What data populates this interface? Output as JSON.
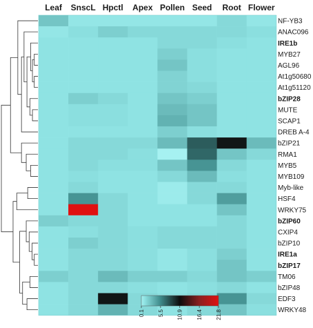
{
  "chart_data": {
    "type": "heatmap",
    "title": "",
    "columns": [
      "Leaf",
      "SnscL",
      "Hpctl",
      "Apex",
      "Pollen",
      "Seed",
      "Root",
      "Flower"
    ],
    "rows": [
      {
        "label": "NF-YB3",
        "highlight": false,
        "values": [
          2.5,
          0.8,
          0.8,
          0.8,
          0.8,
          0.8,
          1.5,
          0.8
        ]
      },
      {
        "label": "ANAC096",
        "highlight": false,
        "values": [
          0.8,
          1.2,
          2.0,
          1.5,
          1.5,
          1.5,
          1.5,
          1.2
        ]
      },
      {
        "label": "IRE1b",
        "highlight": true,
        "values": [
          1.0,
          1.0,
          1.0,
          1.0,
          1.5,
          1.5,
          1.2,
          1.0
        ]
      },
      {
        "label": "MYB27",
        "highlight": false,
        "values": [
          1.0,
          1.0,
          1.0,
          1.0,
          2.0,
          1.2,
          1.0,
          1.0
        ]
      },
      {
        "label": "AGL96",
        "highlight": false,
        "values": [
          1.0,
          1.0,
          1.0,
          1.0,
          2.5,
          1.2,
          1.0,
          1.0
        ]
      },
      {
        "label": "At1g50680",
        "highlight": false,
        "values": [
          1.0,
          1.0,
          1.0,
          1.0,
          1.8,
          1.2,
          1.0,
          1.0
        ]
      },
      {
        "label": "At1g51120",
        "highlight": false,
        "values": [
          1.0,
          1.0,
          1.0,
          1.0,
          1.8,
          1.5,
          1.0,
          1.0
        ]
      },
      {
        "label": "bZIP28",
        "highlight": true,
        "values": [
          1.0,
          2.0,
          1.5,
          1.0,
          2.5,
          2.0,
          1.0,
          1.0
        ]
      },
      {
        "label": "MUTE",
        "highlight": false,
        "values": [
          1.0,
          1.2,
          1.2,
          1.0,
          3.0,
          2.5,
          1.0,
          1.0
        ]
      },
      {
        "label": "SCAP1",
        "highlight": false,
        "values": [
          1.0,
          1.2,
          1.2,
          1.0,
          3.5,
          2.5,
          1.0,
          1.0
        ]
      },
      {
        "label": "DREB A-4",
        "highlight": false,
        "values": [
          1.0,
          1.0,
          1.0,
          1.0,
          2.0,
          1.2,
          1.0,
          1.0
        ]
      },
      {
        "label": "bZIP21",
        "highlight": false,
        "values": [
          1.0,
          1.5,
          1.5,
          1.5,
          3.0,
          7.5,
          10.5,
          3.0
        ]
      },
      {
        "label": "RMA1",
        "highlight": false,
        "values": [
          1.0,
          1.5,
          1.5,
          1.2,
          0.1,
          7.0,
          2.5,
          1.5
        ]
      },
      {
        "label": "MYB5",
        "highlight": false,
        "values": [
          1.0,
          1.5,
          1.2,
          1.2,
          2.5,
          5.0,
          1.5,
          1.0
        ]
      },
      {
        "label": "MYB109",
        "highlight": false,
        "values": [
          1.0,
          1.2,
          1.0,
          1.0,
          1.5,
          3.0,
          1.2,
          1.0
        ]
      },
      {
        "label": "Myb-like",
        "highlight": false,
        "values": [
          1.0,
          1.5,
          1.0,
          1.0,
          0.5,
          1.5,
          1.5,
          1.0
        ]
      },
      {
        "label": "HSF4",
        "highlight": false,
        "values": [
          1.0,
          5.0,
          1.5,
          1.0,
          0.5,
          1.5,
          4.5,
          1.0
        ]
      },
      {
        "label": "WRKY75",
        "highlight": false,
        "values": [
          1.0,
          21.8,
          1.5,
          1.0,
          1.0,
          1.0,
          2.5,
          1.0
        ]
      },
      {
        "label": "bZIP60",
        "highlight": true,
        "values": [
          2.0,
          1.5,
          1.5,
          1.0,
          1.0,
          1.0,
          1.5,
          1.0
        ]
      },
      {
        "label": "CXIP4",
        "highlight": false,
        "values": [
          1.0,
          1.2,
          1.5,
          1.2,
          1.5,
          1.5,
          1.5,
          1.0
        ]
      },
      {
        "label": "bZIP10",
        "highlight": false,
        "values": [
          1.0,
          2.0,
          1.5,
          1.2,
          1.5,
          1.5,
          1.5,
          1.0
        ]
      },
      {
        "label": "IRE1a",
        "highlight": true,
        "values": [
          1.0,
          1.5,
          1.5,
          1.2,
          0.8,
          1.2,
          2.0,
          1.0
        ]
      },
      {
        "label": "bZIP17",
        "highlight": true,
        "values": [
          1.0,
          1.5,
          1.5,
          1.2,
          0.8,
          1.2,
          2.5,
          1.0
        ]
      },
      {
        "label": "TM06",
        "highlight": false,
        "values": [
          2.0,
          1.5,
          3.0,
          2.0,
          2.0,
          1.5,
          2.5,
          2.0
        ]
      },
      {
        "label": "bZIP48",
        "highlight": false,
        "values": [
          1.0,
          1.5,
          1.5,
          1.2,
          1.0,
          1.2,
          1.5,
          1.0
        ]
      },
      {
        "label": "EDF3",
        "highlight": false,
        "values": [
          1.0,
          1.5,
          10.5,
          1.5,
          1.2,
          1.5,
          5.0,
          1.5
        ]
      },
      {
        "label": "WRKY48",
        "highlight": false,
        "values": [
          1.0,
          1.5,
          3.5,
          1.5,
          1.0,
          1.5,
          2.5,
          1.2
        ]
      }
    ],
    "color_scale": {
      "ticks": [
        0.1,
        5.5,
        10.9,
        16.4,
        21.8
      ],
      "tick_labels": [
        "0.1",
        "5.5",
        "10.9",
        "16.4",
        "21.8"
      ],
      "stops": [
        {
          "value": 0.1,
          "color": "#a6f1f1"
        },
        {
          "value": 1.0,
          "color": "#8fe3e3"
        },
        {
          "value": 5.5,
          "color": "#3e8a8a"
        },
        {
          "value": 10.9,
          "color": "#0d0d0d"
        },
        {
          "value": 16.4,
          "color": "#8b2020"
        },
        {
          "value": 21.8,
          "color": "#e01010"
        }
      ]
    },
    "highlight_color": "#cc0000",
    "label_color": "#1a1a1a",
    "dendrogram": {
      "leaf_order": [
        "NF-YB3",
        "ANAC096",
        "IRE1b",
        "MYB27",
        "AGL96",
        "At1g50680",
        "At1g51120",
        "bZIP28",
        "MUTE",
        "SCAP1",
        "DREB A-4",
        "bZIP21",
        "RMA1",
        "MYB5",
        "MYB109",
        "Myb-like",
        "HSF4",
        "WRKY75",
        "bZIP60",
        "CXIP4",
        "bZIP10",
        "IRE1a",
        "bZIP17",
        "TM06",
        "bZIP48",
        "EDF3",
        "WRKY48"
      ],
      "merges": [
        {
          "a": 3,
          "b": 4,
          "h": 0.1
        },
        {
          "a": 5,
          "b": 6,
          "h": 0.1
        },
        {
          "a": 27,
          "b": 28,
          "h": 0.15
        },
        {
          "a": 2,
          "b": 29,
          "h": 0.2
        },
        {
          "a": 8,
          "b": 9,
          "h": 0.15
        },
        {
          "a": 7,
          "b": 31,
          "h": 0.22
        },
        {
          "a": 30,
          "b": 32,
          "h": 0.3
        },
        {
          "a": 1,
          "b": 33,
          "h": 0.38
        },
        {
          "a": 10,
          "b": 34,
          "h": 0.45
        },
        {
          "a": 0,
          "b": 35,
          "h": 0.55
        },
        {
          "a": 13,
          "b": 14,
          "h": 0.2
        },
        {
          "a": 12,
          "b": 37,
          "h": 0.32
        },
        {
          "a": 11,
          "b": 38,
          "h": 0.45
        },
        {
          "a": 36,
          "b": 39,
          "h": 0.75
        },
        {
          "a": 15,
          "b": 16,
          "h": 0.28
        },
        {
          "a": 17,
          "b": 41,
          "h": 0.58
        },
        {
          "a": 21,
          "b": 22,
          "h": 0.1
        },
        {
          "a": 20,
          "b": 43,
          "h": 0.16
        },
        {
          "a": 19,
          "b": 44,
          "h": 0.24
        },
        {
          "a": 18,
          "b": 45,
          "h": 0.32
        },
        {
          "a": 23,
          "b": 24,
          "h": 0.22
        },
        {
          "a": 25,
          "b": 26,
          "h": 0.3
        },
        {
          "a": 47,
          "b": 48,
          "h": 0.42
        },
        {
          "a": 46,
          "b": 49,
          "h": 0.5
        },
        {
          "a": 42,
          "b": 50,
          "h": 0.68
        },
        {
          "a": 40,
          "b": 51,
          "h": 1.0
        }
      ]
    }
  }
}
